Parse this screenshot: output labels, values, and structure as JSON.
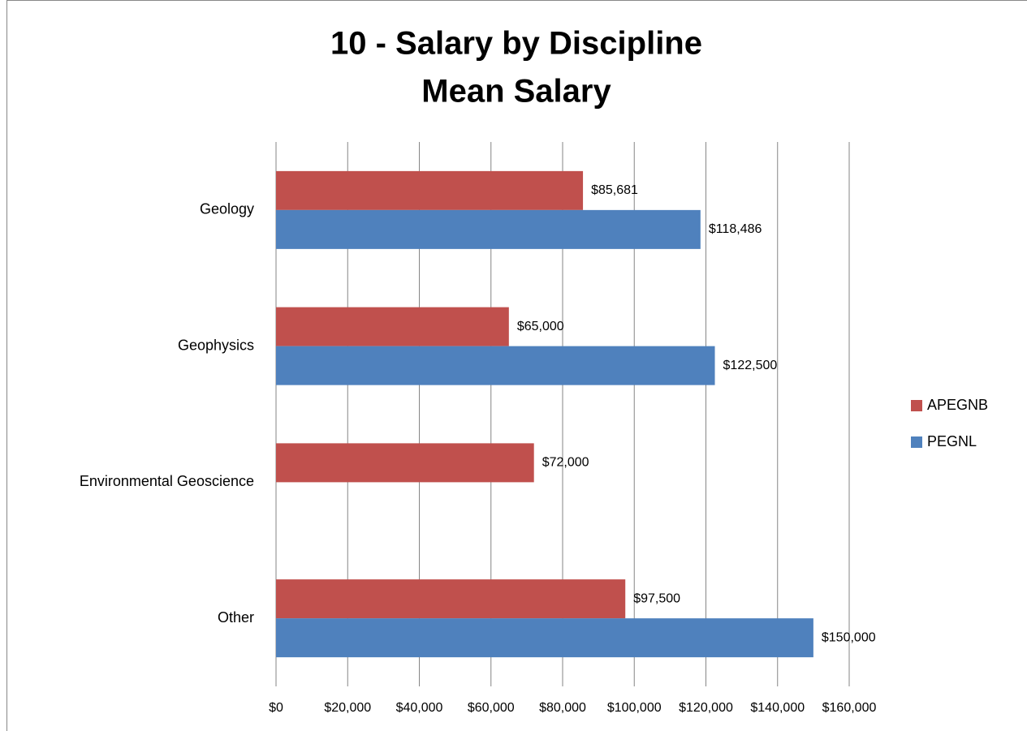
{
  "chart_data": {
    "type": "bar",
    "orientation": "horizontal",
    "title": "10 - Salary by Discipline",
    "subtitle": "Mean Salary",
    "categories": [
      "Geology",
      "Geophysics",
      "Environmental Geoscience",
      "Other"
    ],
    "series": [
      {
        "name": "APEGNB",
        "color": "#c0504d",
        "values": [
          85681,
          65000,
          72000,
          97500
        ],
        "value_labels": [
          "$85,681",
          "$65,000",
          "$72,000",
          "$97,500"
        ]
      },
      {
        "name": "PEGNL",
        "color": "#4f81bd",
        "values": [
          118486,
          122500,
          null,
          150000
        ],
        "value_labels": [
          "$118,486",
          "$122,500",
          null,
          "$150,000"
        ]
      }
    ],
    "xlim": [
      0,
      160000
    ],
    "xticks": [
      {
        "value": 0,
        "label": "$0"
      },
      {
        "value": 20000,
        "label": "$20,000"
      },
      {
        "value": 40000,
        "label": "$40,000"
      },
      {
        "value": 60000,
        "label": "$60,000"
      },
      {
        "value": 80000,
        "label": "$80,000"
      },
      {
        "value": 100000,
        "label": "$100,000"
      },
      {
        "value": 120000,
        "label": "$120,000"
      },
      {
        "value": 140000,
        "label": "$140,000"
      },
      {
        "value": 160000,
        "label": "$160,000"
      }
    ],
    "grid": true,
    "legend": "right"
  }
}
